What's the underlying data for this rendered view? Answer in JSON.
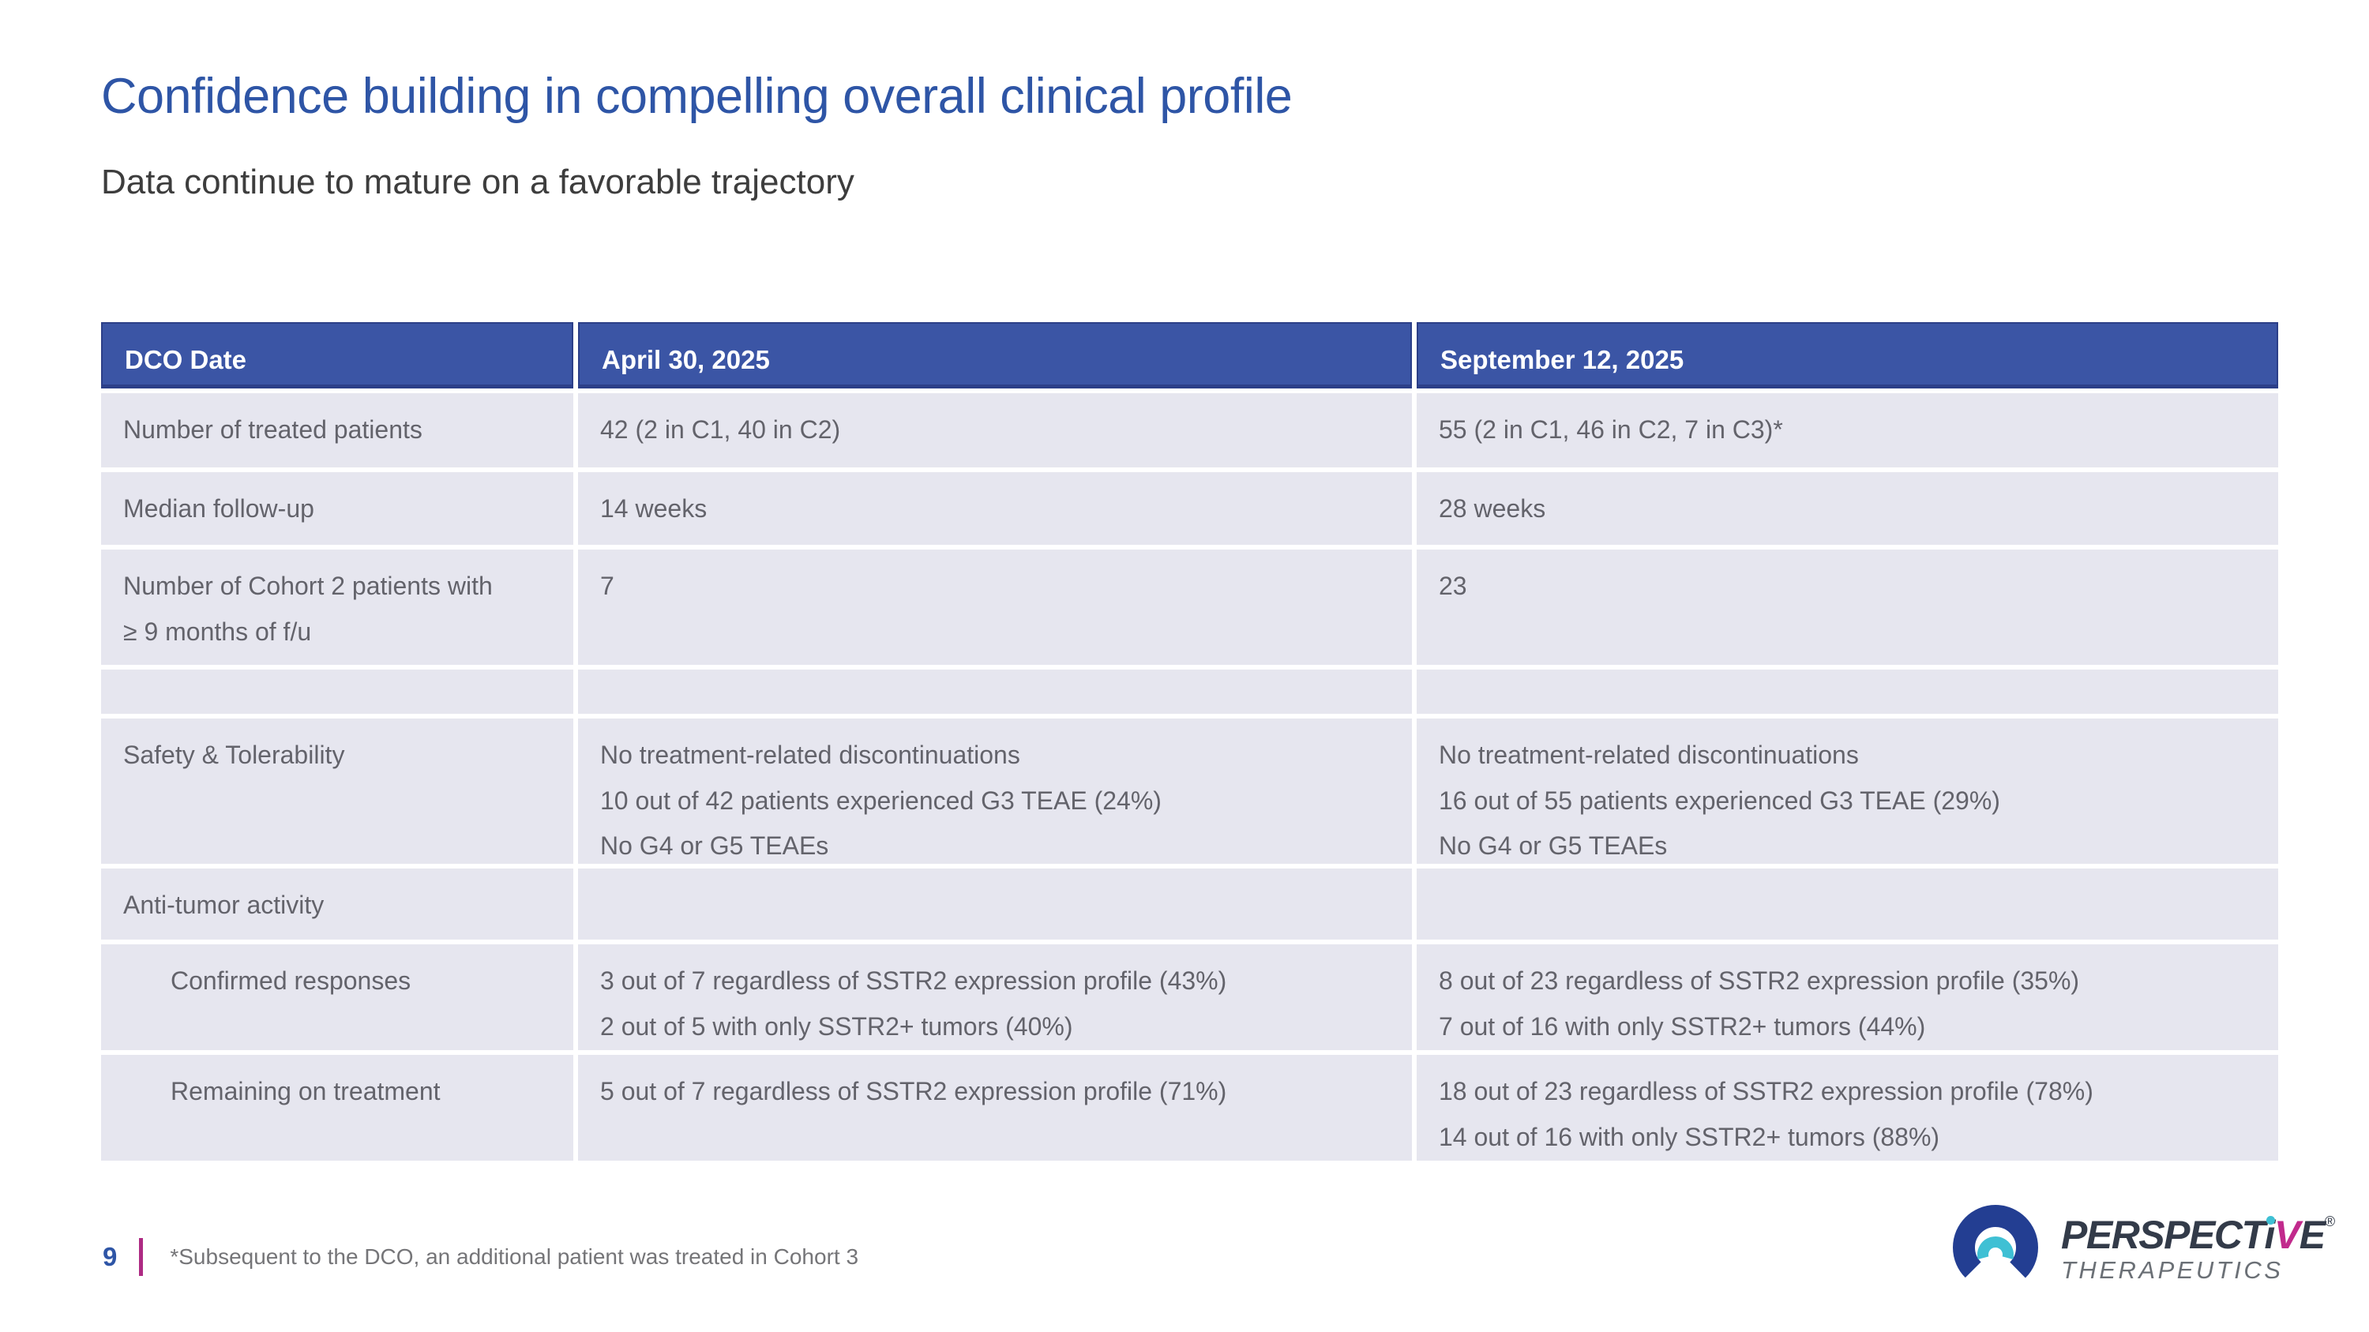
{
  "slide": {
    "title": "Confidence building in compelling overall clinical profile",
    "subtitle": "Data continue to mature on a favorable trajectory",
    "page_number": "9",
    "footnote": "*Subsequent to the DCO, an additional patient was treated in Cohort 3"
  },
  "table": {
    "col_headers": [
      "DCO Date",
      "April 30, 2025",
      "September 12, 2025"
    ],
    "rows": [
      {
        "label": "Number of treated patients",
        "apr": [
          "42 (2 in C1, 40 in C2)"
        ],
        "sep": [
          "55 (2 in C1, 46 in C2, 7 in C3)*"
        ]
      },
      {
        "label": "Median follow-up",
        "apr": [
          "14 weeks"
        ],
        "sep": [
          "28 weeks"
        ]
      },
      {
        "label": "Number of Cohort 2 patients with ≥ 9 months of f/u",
        "apr": [
          "7"
        ],
        "sep": [
          "23"
        ]
      },
      {
        "label": "",
        "apr": [],
        "sep": []
      },
      {
        "label": "Safety & Tolerability",
        "apr": [
          "No treatment-related discontinuations",
          "10 out of 42 patients experienced G3 TEAE (24%)",
          "No G4 or G5 TEAEs"
        ],
        "sep": [
          "No treatment-related discontinuations",
          "16 out of 55 patients experienced G3 TEAE (29%)",
          "No G4 or G5 TEAEs"
        ]
      },
      {
        "label": "Anti-tumor activity",
        "apr": [],
        "sep": []
      },
      {
        "label": "Confirmed responses",
        "apr": [
          "3 out of 7 regardless of SSTR2 expression profile (43%)",
          "2 out of 5 with only SSTR2+ tumors (40%)"
        ],
        "sep": [
          "8 out of 23 regardless of SSTR2 expression profile (35%)",
          "7 out of 16 with only SSTR2+ tumors (44%)"
        ]
      },
      {
        "label": "Remaining on treatment",
        "apr": [
          "5 out of 7 regardless of SSTR2 expression profile (71%)"
        ],
        "sep": [
          "18 out of 23 regardless of SSTR2 expression profile (78%)",
          "14 out of 16 with only SSTR2+ tumors (88%)"
        ]
      }
    ]
  },
  "logo": {
    "word_part1": "PERSPECT",
    "word_i": "i",
    "word_v": "V",
    "word_e": "E",
    "registered": "®",
    "subtext": "THERAPEUTICS"
  },
  "colors": {
    "header_blue": "#3b55a5",
    "header_border_navy": "#2c3f88",
    "row_background": "#e6e6ef",
    "table_text_gray": "#63636b",
    "title_blue": "#2e55a6",
    "subtitle_gray": "#3d3d3d",
    "footnote_gray": "#757578",
    "footer_bar_magenta": "#ae2b84",
    "logo_navy": "#233e92",
    "logo_teal": "#3fc0d4",
    "logo_magenta": "#c12a8c",
    "logo_dark": "#333b49",
    "logo_gray": "#6b7076"
  }
}
